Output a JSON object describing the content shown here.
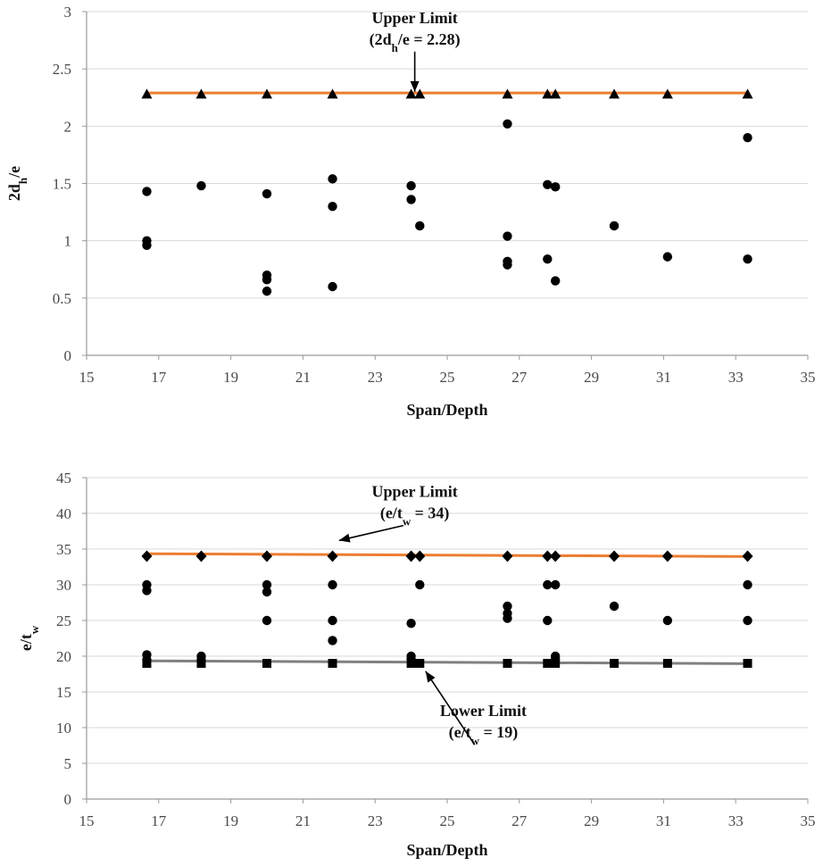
{
  "chart_data": [
    {
      "type": "scatter",
      "xlabel": "Span/Depth",
      "ylabel": "2d_h/e",
      "xlim": [
        15,
        35
      ],
      "ylim": [
        0,
        3
      ],
      "xticks": [
        15,
        17,
        19,
        21,
        23,
        25,
        27,
        29,
        31,
        33,
        35
      ],
      "yticks": [
        0,
        0.5,
        1,
        1.5,
        2,
        2.5,
        3
      ],
      "ytick_labels": [
        "0",
        "0.5",
        "1",
        "1.5",
        "2",
        "2.5",
        "3"
      ],
      "grid": "horizontal",
      "series": [
        {
          "marker": "circle",
          "color": "#000000",
          "points": [
            [
              16.67,
              1.43
            ],
            [
              16.67,
              1.0
            ],
            [
              16.67,
              0.96
            ],
            [
              18.18,
              1.48
            ],
            [
              20.0,
              1.41
            ],
            [
              20.0,
              0.7
            ],
            [
              20.0,
              0.66
            ],
            [
              20.0,
              0.56
            ],
            [
              21.82,
              1.54
            ],
            [
              21.82,
              1.3
            ],
            [
              21.82,
              0.6
            ],
            [
              24.0,
              1.48
            ],
            [
              24.0,
              1.36
            ],
            [
              24.24,
              1.13
            ],
            [
              26.67,
              2.02
            ],
            [
              26.67,
              1.04
            ],
            [
              26.67,
              0.82
            ],
            [
              26.67,
              0.79
            ],
            [
              27.78,
              1.49
            ],
            [
              27.78,
              0.84
            ],
            [
              28.0,
              1.47
            ],
            [
              28.0,
              0.65
            ],
            [
              29.63,
              1.13
            ],
            [
              31.11,
              0.86
            ],
            [
              33.33,
              1.9
            ],
            [
              33.33,
              0.84
            ]
          ]
        },
        {
          "marker": "triangle",
          "color": "#000000",
          "points": [
            [
              16.67,
              2.28
            ],
            [
              18.18,
              2.28
            ],
            [
              20.0,
              2.28
            ],
            [
              21.82,
              2.28
            ],
            [
              24.0,
              2.28
            ],
            [
              24.24,
              2.28
            ],
            [
              26.67,
              2.28
            ],
            [
              27.78,
              2.28
            ],
            [
              28.0,
              2.28
            ],
            [
              29.63,
              2.28
            ],
            [
              31.11,
              2.28
            ],
            [
              33.33,
              2.28
            ]
          ]
        }
      ],
      "lines": [
        {
          "color": "#ED7D31",
          "points": [
            [
              16.67,
              2.29
            ],
            [
              33.33,
              2.29
            ]
          ]
        }
      ],
      "annotations": [
        {
          "lines": [
            "Upper Limit",
            "(2d_h/e = 2.28)"
          ],
          "x": 24.1,
          "y": 2.9,
          "arrow_to": [
            24.1,
            2.3
          ]
        }
      ]
    },
    {
      "type": "scatter",
      "xlabel": "Span/Depth",
      "ylabel": "e/t_w",
      "xlim": [
        15,
        35
      ],
      "ylim": [
        0,
        45
      ],
      "xticks": [
        15,
        17,
        19,
        21,
        23,
        25,
        27,
        29,
        31,
        33,
        35
      ],
      "yticks": [
        0,
        5,
        10,
        15,
        20,
        25,
        30,
        35,
        40,
        45
      ],
      "ytick_labels": [
        "0",
        "5",
        "10",
        "15",
        "20",
        "25",
        "30",
        "35",
        "40",
        "45"
      ],
      "grid": "horizontal",
      "series": [
        {
          "marker": "circle",
          "color": "#000000",
          "points": [
            [
              16.67,
              30
            ],
            [
              16.67,
              29.2
            ],
            [
              16.67,
              20.2
            ],
            [
              16.67,
              19.5
            ],
            [
              18.18,
              20
            ],
            [
              18.18,
              19.5
            ],
            [
              20.0,
              30
            ],
            [
              20.0,
              29
            ],
            [
              20.0,
              25
            ],
            [
              21.82,
              30
            ],
            [
              21.82,
              25
            ],
            [
              21.82,
              22.2
            ],
            [
              24.0,
              24.6
            ],
            [
              24.0,
              20
            ],
            [
              24.0,
              19.6
            ],
            [
              24.24,
              30
            ],
            [
              26.67,
              27
            ],
            [
              26.67,
              26
            ],
            [
              26.67,
              25.3
            ],
            [
              27.78,
              30
            ],
            [
              27.78,
              25
            ],
            [
              28.0,
              30
            ],
            [
              28.0,
              20
            ],
            [
              28.0,
              19.6
            ],
            [
              29.63,
              27
            ],
            [
              31.11,
              25
            ],
            [
              33.33,
              30
            ],
            [
              33.33,
              25
            ]
          ]
        },
        {
          "marker": "diamond",
          "color": "#000000",
          "points": [
            [
              16.67,
              34
            ],
            [
              18.18,
              34
            ],
            [
              20.0,
              34
            ],
            [
              21.82,
              34
            ],
            [
              24.0,
              34
            ],
            [
              24.24,
              34
            ],
            [
              26.67,
              34
            ],
            [
              27.78,
              34
            ],
            [
              28.0,
              34
            ],
            [
              29.63,
              34
            ],
            [
              31.11,
              34
            ],
            [
              33.33,
              34
            ]
          ]
        },
        {
          "marker": "square",
          "color": "#000000",
          "points": [
            [
              16.67,
              19
            ],
            [
              18.18,
              19
            ],
            [
              20.0,
              19
            ],
            [
              21.82,
              19
            ],
            [
              24.0,
              19
            ],
            [
              24.24,
              19
            ],
            [
              26.67,
              19
            ],
            [
              27.78,
              19
            ],
            [
              28.0,
              19
            ],
            [
              29.63,
              19
            ],
            [
              31.11,
              19
            ],
            [
              33.33,
              19
            ]
          ]
        }
      ],
      "lines": [
        {
          "color": "#ED7D31",
          "points": [
            [
              16.67,
              34.35
            ],
            [
              33.33,
              33.95
            ]
          ]
        },
        {
          "color": "#808080",
          "points": [
            [
              16.67,
              19.35
            ],
            [
              33.33,
              18.95
            ]
          ]
        }
      ],
      "annotations": [
        {
          "lines": [
            "Upper Limit",
            "(e/t_w = 34)"
          ],
          "x": 24.1,
          "y": 42.3,
          "arrow_to": [
            22.0,
            36.2
          ]
        },
        {
          "lines": [
            "Lower Limit",
            "(e/t_w = 19)"
          ],
          "x": 26.0,
          "y": 11.6,
          "arrow_to": [
            24.4,
            17.9
          ]
        }
      ]
    }
  ]
}
